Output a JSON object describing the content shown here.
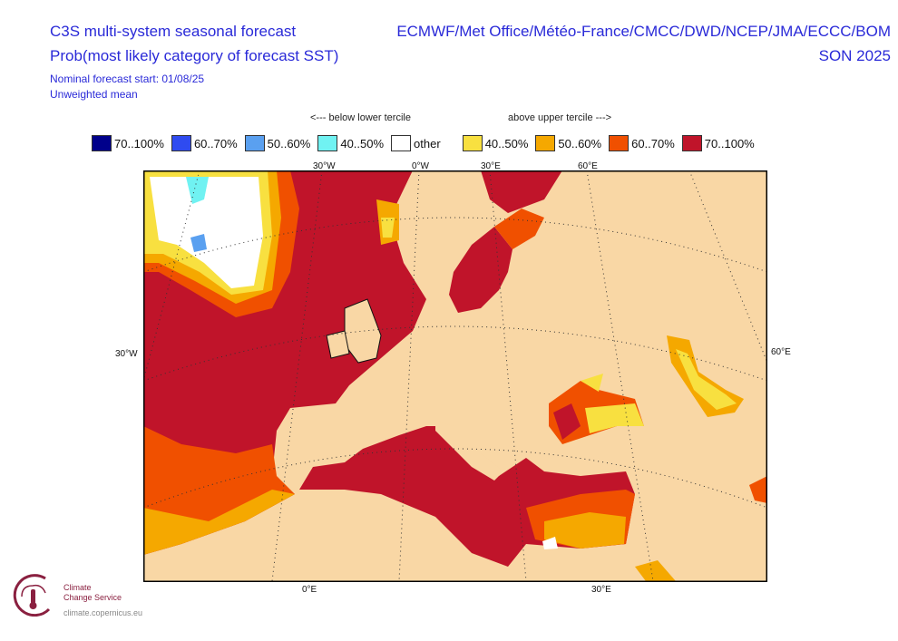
{
  "header": {
    "title": "C3S multi-system seasonal forecast",
    "subtitle": "Prob(most likely category of forecast SST)",
    "forecast_start": "Nominal forecast start: 01/08/25",
    "weighting": "Unweighted mean",
    "centres": "ECMWF/Met Office/Météo-France/CMCC/DWD/NCEP/JMA/ECCC/BOM",
    "season": "SON 2025"
  },
  "legend": {
    "below_label": "<--- below lower tercile",
    "above_label": "above upper tercile --->",
    "items": [
      {
        "label": "70..100%",
        "color": "#00008b"
      },
      {
        "label": "60..70%",
        "color": "#2f4bf0"
      },
      {
        "label": "50..60%",
        "color": "#5aa0f0"
      },
      {
        "label": "40..50%",
        "color": "#70f2f2"
      },
      {
        "label": "other",
        "color": "#ffffff"
      },
      {
        "label": "40..50%",
        "color": "#f8e040"
      },
      {
        "label": "50..60%",
        "color": "#f5a800"
      },
      {
        "label": "60..70%",
        "color": "#f05000"
      },
      {
        "label": "70..100%",
        "color": "#c0142a"
      }
    ]
  },
  "axes": {
    "top": [
      "30°W",
      "0°W",
      "30°E",
      "60°E"
    ],
    "left": "30°W",
    "right": "60°E",
    "bottom": [
      "0°E",
      "30°E"
    ]
  },
  "colors": {
    "land": "#f9d7a5",
    "sea_high": "#c0142a"
  },
  "logo": {
    "line1": "Climate",
    "line2": "Change Service",
    "url": "climate.copernicus.eu"
  }
}
